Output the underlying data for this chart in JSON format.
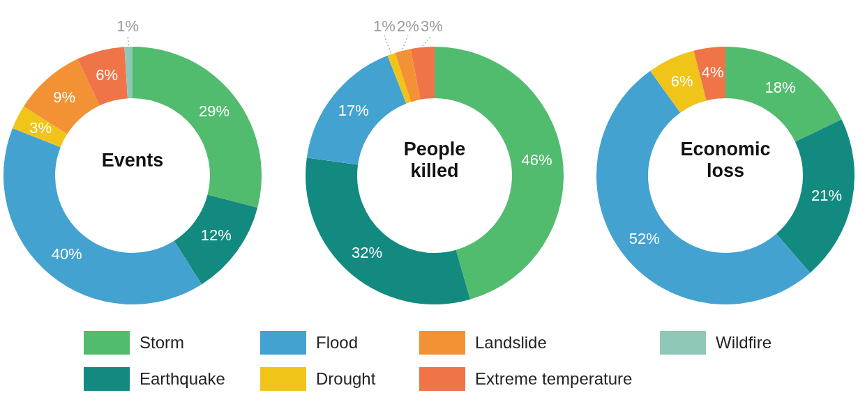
{
  "chart_data": [
    {
      "type": "donut",
      "title": "Events",
      "categories": [
        "Storm",
        "Earthquake",
        "Flood",
        "Drought",
        "Landslide",
        "Extreme temperature",
        "Wildfire"
      ],
      "values": [
        29,
        12,
        40,
        3,
        9,
        6,
        1
      ],
      "value_labels": [
        "29%",
        "12%",
        "40%",
        "3%",
        "9%",
        "6%",
        "1%"
      ],
      "colors": [
        "#52bc6e",
        "#138a80",
        "#43a2cf",
        "#f0c419",
        "#f39234",
        "#ef7448",
        "#8fc7b8"
      ],
      "legend": "bottom"
    },
    {
      "type": "donut",
      "title": "People killed",
      "categories": [
        null,
        null,
        null,
        null,
        null,
        null
      ],
      "values": [
        46,
        32,
        17,
        1,
        2,
        3
      ],
      "value_labels": [
        "46%",
        "32%",
        "17%",
        "1%",
        "2%",
        "3%"
      ],
      "colors": [
        "#52bc6e",
        "#138a80",
        "#43a2cf",
        "#f0c419",
        "#f39234",
        "#ef7448"
      ]
    },
    {
      "type": "donut",
      "title": "Economic loss",
      "categories": [
        null,
        null,
        null,
        null,
        null
      ],
      "values": [
        18,
        21,
        52,
        6,
        4
      ],
      "value_labels": [
        "18%",
        "21%",
        "52%",
        "6%",
        "4%"
      ],
      "colors": [
        "#52bc6e",
        "#138a80",
        "#43a2cf",
        "#f0c419",
        "#ef7448"
      ]
    }
  ]
}
